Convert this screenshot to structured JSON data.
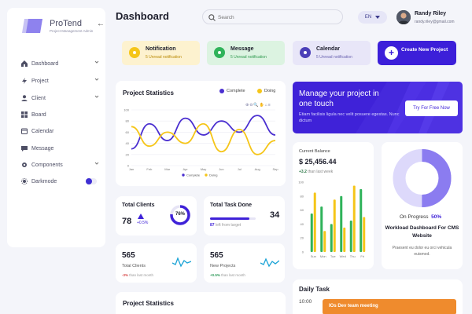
{
  "brand": {
    "name": "ProTend",
    "tagline": "Project Management Admin"
  },
  "sidebar": {
    "items": [
      {
        "label": "Dashboard",
        "icon": "home-icon",
        "chev": true
      },
      {
        "label": "Project",
        "icon": "bolt-icon",
        "chev": true
      },
      {
        "label": "Client",
        "icon": "user-icon",
        "chev": true
      },
      {
        "label": "Board",
        "icon": "grid-icon",
        "chev": false
      },
      {
        "label": "Calendar",
        "icon": "calendar-icon",
        "chev": false
      },
      {
        "label": "Message",
        "icon": "message-icon",
        "chev": false
      },
      {
        "label": "Components",
        "icon": "gear-icon",
        "chev": true
      },
      {
        "label": "Darkmode",
        "icon": "sun-icon",
        "toggle": true
      }
    ]
  },
  "header": {
    "title": "Dashboard",
    "search_placeholder": "Search",
    "language": "EN",
    "user_name": "Randy Riley",
    "user_email": "randy.riley@gmail.com"
  },
  "notifications": [
    {
      "title": "Notification",
      "sub": "5 Unread notification",
      "bg": "#fdf2cf",
      "circle": "#f5c518",
      "subcolor": "#b98a06"
    },
    {
      "title": "Message",
      "sub": "5 Unread notification",
      "bg": "#dcf3e1",
      "circle": "#2fb35a",
      "subcolor": "#2f9a4f"
    },
    {
      "title": "Calendar",
      "sub": "5 Unread notification",
      "bg": "#e8e6f8",
      "circle": "#4b3fb8",
      "subcolor": "#6a63b0"
    }
  ],
  "create": {
    "label": "Create New Project"
  },
  "project_stats": {
    "title": "Project Statistics",
    "legend_complete": "Complete",
    "legend_doing": "Doing",
    "legend_complete_small": "Complete",
    "legend_doing_small": "Doing"
  },
  "chart_data": {
    "type": "line",
    "categories": [
      "Jan",
      "Feb",
      "Mar",
      "Apr",
      "May",
      "Jun",
      "Jul",
      "Aug",
      "Sep"
    ],
    "ylim": [
      0,
      100
    ],
    "yticks": [
      0,
      20,
      40,
      60,
      80,
      100
    ],
    "series": [
      {
        "name": "Complete",
        "color": "#4a2fd0",
        "values": [
          30,
          75,
          45,
          85,
          55,
          80,
          60,
          90,
          55
        ]
      },
      {
        "name": "Doing",
        "color": "#f5c518",
        "values": [
          70,
          35,
          60,
          40,
          75,
          25,
          65,
          20,
          45
        ]
      }
    ],
    "grid": true
  },
  "promo": {
    "title": "Manage your project in one touch",
    "desc": "Etiam facilisis ligula nec velit posuere egestas. Nunc dictum",
    "button": "Try For Free Now"
  },
  "balance": {
    "label": "Current Balance",
    "value": "$ 25,456.44",
    "change": "+3.2",
    "change_text": " than last week",
    "bar_chart": {
      "type": "bar",
      "categories": [
        "Sun",
        "Mon",
        "Tue",
        "Wed",
        "Thu",
        "Fri"
      ],
      "ylim": [
        0,
        100
      ],
      "yticks": [
        0,
        20,
        40,
        60,
        80,
        100
      ],
      "series": [
        {
          "name": "green",
          "color": "#2fb35a",
          "values": [
            55,
            65,
            40,
            80,
            45,
            90
          ]
        },
        {
          "name": "yellow",
          "color": "#f5c518",
          "values": [
            85,
            30,
            75,
            35,
            95,
            50
          ]
        }
      ]
    }
  },
  "progress": {
    "label": "On Progress",
    "percent_label": "50%",
    "percent": 50,
    "title": "Workload Dashboard For CMS Website",
    "desc": "Praesent eu dolor eu orci vehicula euismod."
  },
  "kpis": {
    "clients": {
      "title": "Total Clients",
      "value": "78",
      "change": "+0.5%",
      "ring_label": "76%",
      "ring": 76
    },
    "tasks": {
      "title": "Total Task Done",
      "value": "34",
      "sub_value": "87",
      "sub_text": " left from target",
      "bar": 0.87
    },
    "total_clients": {
      "value": "565",
      "label": "Total Clients",
      "change": "-3%",
      "change_text": " than last month"
    },
    "new_projects": {
      "value": "565",
      "label": "New Projects",
      "change": "+0.5%",
      "change_text": " than last month"
    }
  },
  "project_stats_2": {
    "title": "Project Statistics"
  },
  "daily_task": {
    "title": "Daily Task",
    "time": "10:00",
    "event": "IOs Dev team meeting"
  }
}
